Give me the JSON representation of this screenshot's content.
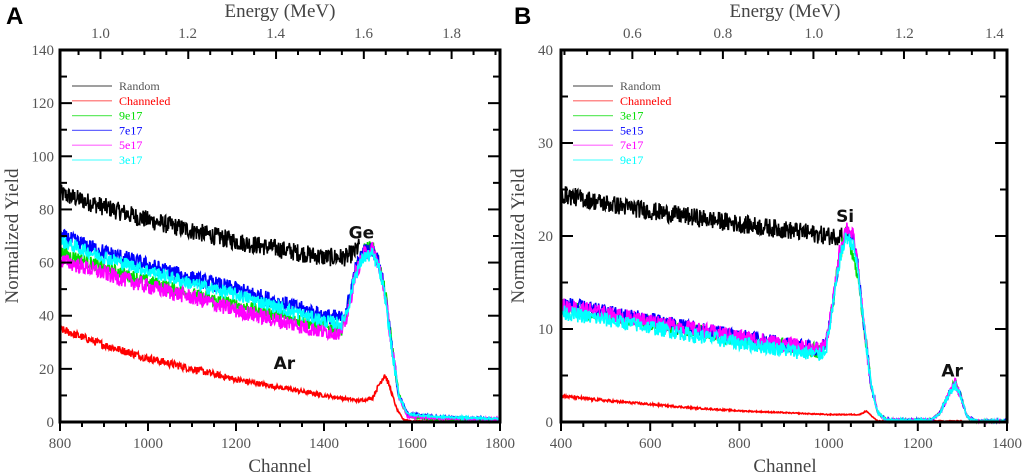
{
  "chart_data": [
    {
      "panel": "A",
      "type": "line",
      "xlabel": "Channel",
      "ylabel": "Normalized Yield",
      "top_xlabel": "Energy (MeV)",
      "xlim": [
        800,
        1800
      ],
      "ylim": [
        0,
        140
      ],
      "x_ticks": [
        800,
        1000,
        1200,
        1400,
        1600,
        1800
      ],
      "y_ticks": [
        0,
        20,
        40,
        60,
        80,
        100,
        120,
        140
      ],
      "top_ticks": [
        {
          "label": "1.0",
          "channel": 892
        },
        {
          "label": "1.2",
          "channel": 1090
        },
        {
          "label": "1.4",
          "channel": 1290
        },
        {
          "label": "1.6",
          "channel": 1490
        },
        {
          "label": "1.8",
          "channel": 1690
        }
      ],
      "legend": {
        "placement": "top-left",
        "entries": [
          {
            "name": "Random",
            "color": "#000000"
          },
          {
            "name": "Channeled",
            "color": "#ff0000"
          },
          {
            "name": "9e17",
            "color": "#00dd00"
          },
          {
            "name": "7e17",
            "color": "#0000ff"
          },
          {
            "name": "5e17",
            "color": "#ff00ff"
          },
          {
            "name": "3e17",
            "color": "#00ffff"
          }
        ]
      },
      "annotations": [
        {
          "text": "Ge",
          "x": 1485,
          "y": 69
        },
        {
          "text": "Ar",
          "x": 1310,
          "y": 20
        }
      ],
      "series": [
        {
          "name": "Random",
          "color": "#000000",
          "noise": 3.5,
          "points": [
            [
              800,
              86
            ],
            [
              900,
              81
            ],
            [
              1000,
              76
            ],
            [
              1100,
              72
            ],
            [
              1200,
              68
            ],
            [
              1300,
              65
            ],
            [
              1400,
              62
            ],
            [
              1450,
              62
            ],
            [
              1470,
              64
            ],
            [
              1480,
              66
            ]
          ]
        },
        {
          "name": "Channeled",
          "color": "#ff0000",
          "noise": 1.5,
          "points": [
            [
              800,
              35
            ],
            [
              900,
              29
            ],
            [
              1000,
              24
            ],
            [
              1100,
              20
            ],
            [
              1200,
              16
            ],
            [
              1300,
              13
            ],
            [
              1400,
              10
            ],
            [
              1480,
              8
            ],
            [
              1510,
              9
            ],
            [
              1525,
              14
            ],
            [
              1538,
              18
            ],
            [
              1550,
              13
            ],
            [
              1565,
              5
            ],
            [
              1580,
              1
            ],
            [
              1600,
              0.3
            ],
            [
              1800,
              0.2
            ]
          ]
        },
        {
          "name": "9e17",
          "color": "#00dd00",
          "noise": 2.5,
          "points": [
            [
              800,
              64
            ],
            [
              900,
              58
            ],
            [
              1000,
              53
            ],
            [
              1100,
              48
            ],
            [
              1200,
              44
            ],
            [
              1300,
              40
            ],
            [
              1400,
              36
            ],
            [
              1440,
              35
            ],
            [
              1455,
              42
            ],
            [
              1470,
              56
            ],
            [
              1490,
              65
            ],
            [
              1510,
              66
            ],
            [
              1525,
              60
            ],
            [
              1540,
              48
            ],
            [
              1555,
              28
            ],
            [
              1570,
              10
            ],
            [
              1590,
              2
            ],
            [
              1650,
              1
            ],
            [
              1800,
              0.5
            ]
          ]
        },
        {
          "name": "7e17",
          "color": "#0000ff",
          "noise": 3,
          "points": [
            [
              800,
              70
            ],
            [
              900,
              64
            ],
            [
              1000,
              59
            ],
            [
              1100,
              54
            ],
            [
              1200,
              50
            ],
            [
              1300,
              45
            ],
            [
              1400,
              40
            ],
            [
              1440,
              39
            ],
            [
              1455,
              45
            ],
            [
              1470,
              57
            ],
            [
              1490,
              64
            ],
            [
              1510,
              65
            ],
            [
              1525,
              60
            ],
            [
              1540,
              47
            ],
            [
              1555,
              27
            ],
            [
              1570,
              10
            ],
            [
              1590,
              3
            ],
            [
              1650,
              2
            ],
            [
              1800,
              1
            ]
          ]
        },
        {
          "name": "5e17",
          "color": "#ff00ff",
          "noise": 3,
          "points": [
            [
              800,
              61
            ],
            [
              900,
              56
            ],
            [
              1000,
              51
            ],
            [
              1100,
              47
            ],
            [
              1200,
              42
            ],
            [
              1300,
              38
            ],
            [
              1400,
              34
            ],
            [
              1440,
              34
            ],
            [
              1455,
              41
            ],
            [
              1470,
              55
            ],
            [
              1490,
              63
            ],
            [
              1510,
              65
            ],
            [
              1525,
              59
            ],
            [
              1540,
              47
            ],
            [
              1555,
              27
            ],
            [
              1570,
              10
            ],
            [
              1590,
              2
            ],
            [
              1650,
              1.5
            ],
            [
              1800,
              1
            ]
          ]
        },
        {
          "name": "3e17",
          "color": "#00ffff",
          "noise": 2.5,
          "points": [
            [
              800,
              68
            ],
            [
              900,
              62
            ],
            [
              1000,
              57
            ],
            [
              1100,
              52
            ],
            [
              1200,
              48
            ],
            [
              1300,
              43
            ],
            [
              1400,
              38
            ],
            [
              1440,
              37
            ],
            [
              1455,
              43
            ],
            [
              1470,
              55
            ],
            [
              1490,
              62
            ],
            [
              1510,
              63
            ],
            [
              1525,
              58
            ],
            [
              1540,
              46
            ],
            [
              1555,
              26
            ],
            [
              1570,
              10
            ],
            [
              1590,
              3
            ],
            [
              1650,
              2
            ],
            [
              1800,
              1.2
            ]
          ]
        }
      ]
    },
    {
      "panel": "B",
      "type": "line",
      "xlabel": "Channel",
      "ylabel": "Normalized Yield",
      "top_xlabel": "Energy (MeV)",
      "xlim": [
        400,
        1400
      ],
      "ylim": [
        0,
        40
      ],
      "x_ticks": [
        400,
        600,
        800,
        1000,
        1200,
        1400
      ],
      "y_ticks": [
        0,
        10,
        20,
        30,
        40
      ],
      "top_ticks": [
        {
          "label": "0.6",
          "channel": 560
        },
        {
          "label": "0.8",
          "channel": 763
        },
        {
          "label": "1.0",
          "channel": 967
        },
        {
          "label": "1.2",
          "channel": 1170
        },
        {
          "label": "1.4",
          "channel": 1372
        }
      ],
      "legend": {
        "placement": "top-left",
        "entries": [
          {
            "name": "Random",
            "color": "#000000"
          },
          {
            "name": "Channeled",
            "color": "#ff0000"
          },
          {
            "name": "3e17",
            "color": "#00dd00"
          },
          {
            "name": "5e15",
            "color": "#0000ff"
          },
          {
            "name": "7e17",
            "color": "#ff00ff"
          },
          {
            "name": "9e17",
            "color": "#00ffff"
          }
        ]
      },
      "annotations": [
        {
          "text": "Si",
          "x": 1037,
          "y": 21.5
        },
        {
          "text": "Ar",
          "x": 1277,
          "y": 4.9
        }
      ],
      "series": [
        {
          "name": "Random",
          "color": "#000000",
          "noise": 1.0,
          "points": [
            [
              400,
              24.5
            ],
            [
              500,
              23.5
            ],
            [
              600,
              22.7
            ],
            [
              700,
              22
            ],
            [
              800,
              21.3
            ],
            [
              900,
              20.7
            ],
            [
              1000,
              20
            ],
            [
              1020,
              20
            ],
            [
              1030,
              20.3
            ]
          ]
        },
        {
          "name": "Channeled",
          "color": "#ff0000",
          "noise": 0.35,
          "points": [
            [
              400,
              2.8
            ],
            [
              500,
              2.3
            ],
            [
              600,
              1.9
            ],
            [
              700,
              1.5
            ],
            [
              800,
              1.2
            ],
            [
              900,
              1.0
            ],
            [
              1000,
              0.8
            ],
            [
              1070,
              0.8
            ],
            [
              1085,
              1.2
            ],
            [
              1095,
              0.7
            ],
            [
              1110,
              0.1
            ],
            [
              1300,
              0.1
            ]
          ]
        },
        {
          "name": "3e17",
          "color": "#00dd00",
          "noise": 0.8,
          "points": [
            [
              400,
              12.5
            ],
            [
              500,
              11.5
            ],
            [
              600,
              10.7
            ],
            [
              700,
              9.8
            ],
            [
              800,
              9
            ],
            [
              900,
              8.2
            ],
            [
              980,
              7.6
            ],
            [
              995,
              8.5
            ],
            [
              1010,
              13
            ],
            [
              1025,
              18
            ],
            [
              1040,
              20.5
            ],
            [
              1055,
              17.5
            ],
            [
              1065,
              16
            ],
            [
              1080,
              10
            ],
            [
              1095,
              4
            ],
            [
              1110,
              1
            ],
            [
              1130,
              0.2
            ],
            [
              1230,
              0.2
            ],
            [
              1250,
              1
            ],
            [
              1270,
              3
            ],
            [
              1283,
              4.2
            ],
            [
              1295,
              3
            ],
            [
              1310,
              0.6
            ],
            [
              1330,
              0.1
            ],
            [
              1400,
              0.1
            ]
          ]
        },
        {
          "name": "5e15",
          "color": "#0000ff",
          "noise": 0.8,
          "points": [
            [
              400,
              12.8
            ],
            [
              500,
              11.8
            ],
            [
              600,
              11
            ],
            [
              700,
              10
            ],
            [
              800,
              9.2
            ],
            [
              900,
              8.4
            ],
            [
              980,
              7.8
            ],
            [
              995,
              8.6
            ],
            [
              1010,
              13
            ],
            [
              1025,
              18
            ],
            [
              1040,
              20.5
            ],
            [
              1055,
              19.5
            ],
            [
              1065,
              17
            ],
            [
              1080,
              10
            ],
            [
              1095,
              4
            ],
            [
              1110,
              1
            ],
            [
              1130,
              0.2
            ],
            [
              1230,
              0.2
            ],
            [
              1250,
              1
            ],
            [
              1270,
              3
            ],
            [
              1283,
              4.2
            ],
            [
              1295,
              3
            ],
            [
              1310,
              0.6
            ],
            [
              1330,
              0.1
            ],
            [
              1400,
              0.1
            ]
          ]
        },
        {
          "name": "7e17",
          "color": "#ff00ff",
          "noise": 0.8,
          "points": [
            [
              400,
              12.6
            ],
            [
              500,
              11.7
            ],
            [
              600,
              10.9
            ],
            [
              700,
              10
            ],
            [
              800,
              9.2
            ],
            [
              900,
              8.4
            ],
            [
              980,
              7.8
            ],
            [
              995,
              8.6
            ],
            [
              1010,
              13
            ],
            [
              1025,
              18.5
            ],
            [
              1040,
              21
            ],
            [
              1055,
              20
            ],
            [
              1065,
              17
            ],
            [
              1080,
              10
            ],
            [
              1095,
              4
            ],
            [
              1110,
              1
            ],
            [
              1130,
              0.2
            ],
            [
              1230,
              0.2
            ],
            [
              1250,
              1
            ],
            [
              1270,
              3
            ],
            [
              1283,
              4.3
            ],
            [
              1295,
              3
            ],
            [
              1310,
              0.6
            ],
            [
              1330,
              0.1
            ],
            [
              1400,
              0.1
            ]
          ]
        },
        {
          "name": "9e17",
          "color": "#00ffff",
          "noise": 0.8,
          "points": [
            [
              400,
              11.8
            ],
            [
              500,
              11
            ],
            [
              600,
              10.2
            ],
            [
              700,
              9.3
            ],
            [
              800,
              8.5
            ],
            [
              900,
              7.8
            ],
            [
              980,
              7.2
            ],
            [
              995,
              8
            ],
            [
              1010,
              12.5
            ],
            [
              1025,
              17.5
            ],
            [
              1040,
              20
            ],
            [
              1055,
              19
            ],
            [
              1065,
              16.5
            ],
            [
              1080,
              10
            ],
            [
              1095,
              4
            ],
            [
              1110,
              1
            ],
            [
              1130,
              0.2
            ],
            [
              1230,
              0.2
            ],
            [
              1250,
              1
            ],
            [
              1270,
              3
            ],
            [
              1283,
              4.1
            ],
            [
              1295,
              3
            ],
            [
              1310,
              0.6
            ],
            [
              1330,
              0.1
            ],
            [
              1400,
              0.1
            ]
          ]
        }
      ]
    }
  ]
}
